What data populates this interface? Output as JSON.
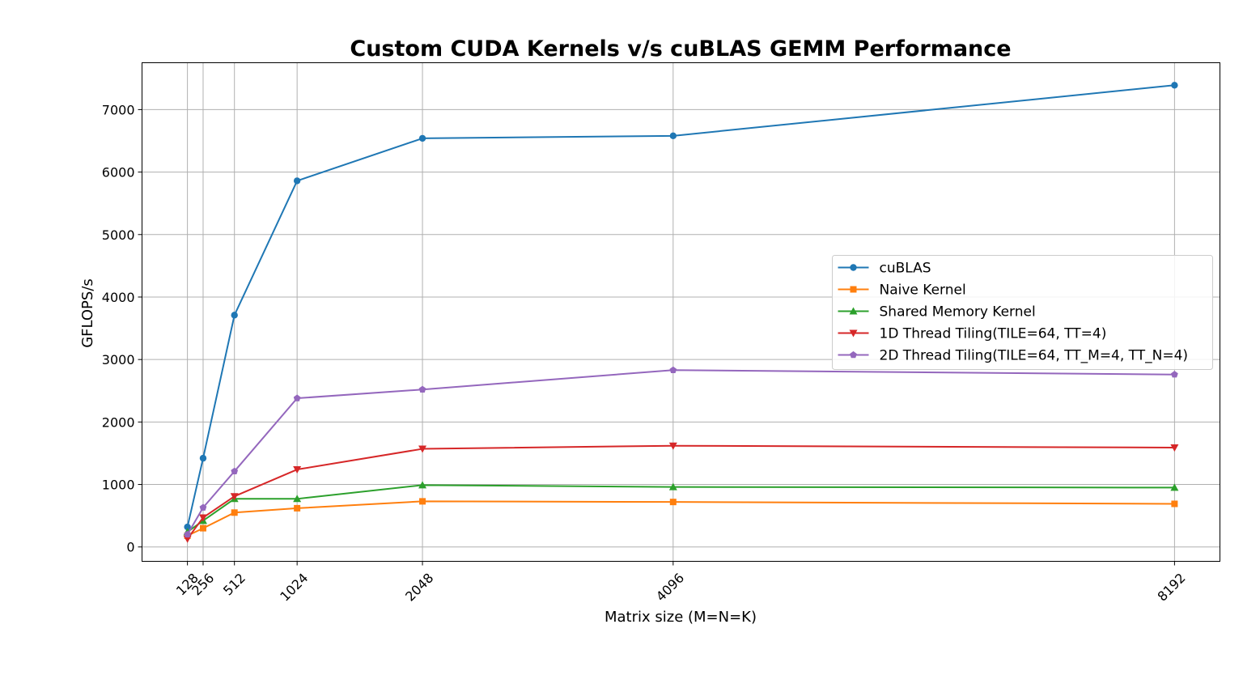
{
  "chart_data": {
    "type": "line",
    "title": "Custom CUDA Kernels v/s cuBLAS GEMM Performance",
    "xlabel": "Matrix size (M=N=K)",
    "ylabel": "GFLOPS/s",
    "x": [
      128,
      256,
      512,
      1024,
      2048,
      4096,
      8192
    ],
    "x_tick_labels": [
      "128",
      "256",
      "512",
      "1024",
      "2048",
      "4096",
      "8192"
    ],
    "xlim": [
      -243,
      8563
    ],
    "ylim": [
      -230,
      7750
    ],
    "y_ticks": [
      0,
      1000,
      2000,
      3000,
      4000,
      5000,
      6000,
      7000
    ],
    "y_tick_labels": [
      "0",
      "1000",
      "2000",
      "3000",
      "4000",
      "5000",
      "6000",
      "7000"
    ],
    "grid": true,
    "legend_position": "center-right",
    "series": [
      {
        "name": "cuBLAS",
        "color": "#1f77b4",
        "marker": "circle",
        "values": [
          320,
          1420,
          3710,
          5860,
          6540,
          6580,
          7390
        ]
      },
      {
        "name": "Naive Kernel",
        "color": "#ff7f0e",
        "marker": "square",
        "values": [
          180,
          300,
          550,
          620,
          730,
          720,
          690
        ]
      },
      {
        "name": "Shared Memory Kernel",
        "color": "#2ca02c",
        "marker": "triangle-up",
        "values": [
          240,
          420,
          770,
          770,
          990,
          960,
          950
        ]
      },
      {
        "name": "1D Thread Tiling(TILE=64, TT=4)",
        "color": "#d62728",
        "marker": "triangle-down",
        "values": [
          130,
          470,
          810,
          1240,
          1570,
          1620,
          1590
        ]
      },
      {
        "name": "2D Thread Tiling(TILE=64, TT_M=4, TT_N=4)",
        "color": "#9467bd",
        "marker": "pentagon",
        "values": [
          200,
          630,
          1210,
          2380,
          2520,
          2830,
          2760
        ]
      }
    ]
  }
}
